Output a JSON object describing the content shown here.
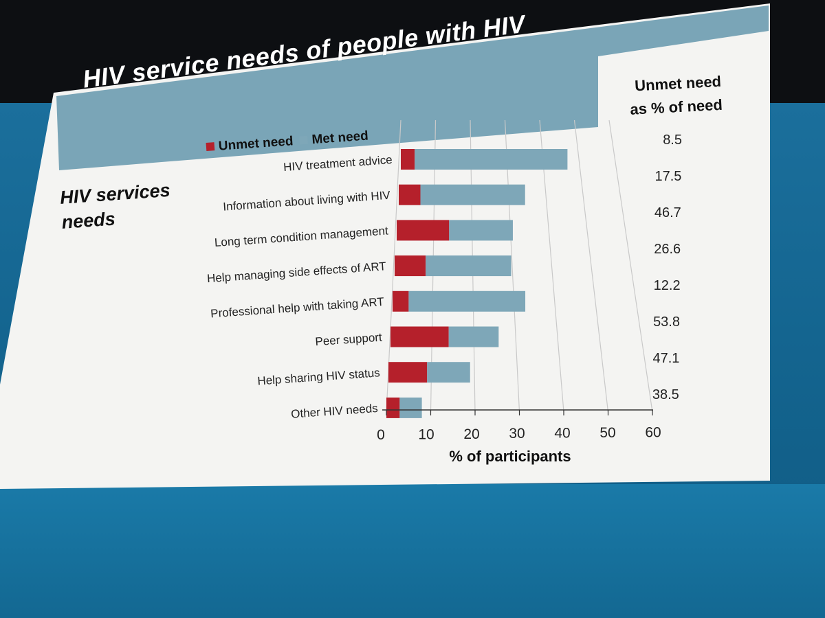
{
  "slide": {
    "title": "HIV service needs of people with HIV",
    "side_label_line1": "HIV services",
    "side_label_line2": "needs",
    "right_header_line1": "Unmet need",
    "right_header_line2": "as % of need"
  },
  "colors": {
    "unmet": "#b5202b",
    "met": "#7ea7b8",
    "title_bar": "#7aa5b7",
    "slide_bg": "#f4f4f2"
  },
  "chart_data": {
    "type": "bar",
    "orientation": "horizontal",
    "stacked": true,
    "title": "HIV service needs of people with HIV",
    "xlabel": "% of participants",
    "ylabel": "HIV services needs",
    "xlim": [
      0,
      60
    ],
    "xticks": [
      "0",
      "10",
      "20",
      "30",
      "40",
      "50",
      "60"
    ],
    "grid": "vertical",
    "legend": [
      "Unmet need",
      "Met need"
    ],
    "legend_position": "top",
    "categories": [
      "HIV treatment advice",
      "Information about living with HIV",
      "Long term condition management",
      "Help managing side effects of ART",
      "Professional help with taking ART",
      "Peer support",
      "Help sharing HIV status",
      "Other HIV needs"
    ],
    "series": [
      {
        "name": "Unmet need",
        "values": [
          4,
          6,
          14,
          8,
          4,
          14,
          9,
          3
        ]
      },
      {
        "name": "Met need",
        "values": [
          44,
          29,
          17,
          22,
          29,
          12,
          10,
          5
        ]
      }
    ],
    "annotation_header": "Unmet need as % of need",
    "unmet_pct_of_need": [
      "8.5",
      "17.5",
      "46.7",
      "26.6",
      "12.2",
      "53.8",
      "47.1",
      "38.5"
    ]
  }
}
